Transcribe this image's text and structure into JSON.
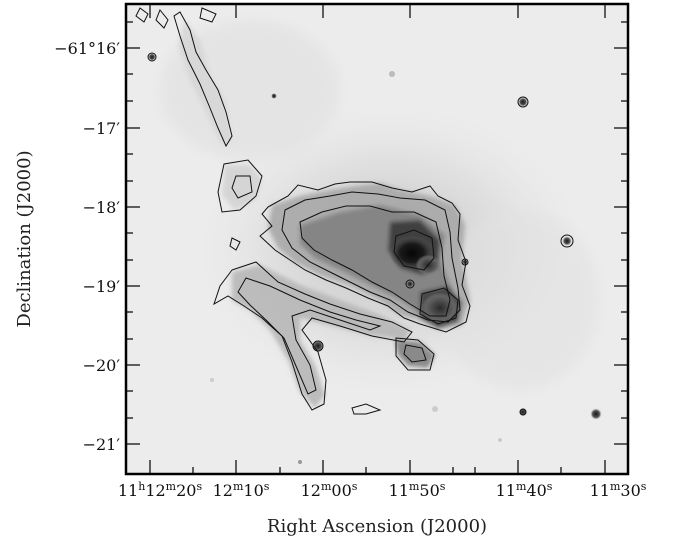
{
  "figure": {
    "axes": {
      "x": {
        "title": "Right Ascension (J2000)",
        "ticks": [
          {
            "h": "11",
            "m": "12",
            "s": "20"
          },
          {
            "h": "",
            "m": "12",
            "s": "10"
          },
          {
            "h": "",
            "m": "12",
            "s": "00"
          },
          {
            "h": "",
            "m": "11",
            "s": "50"
          },
          {
            "h": "",
            "m": "11",
            "s": "40"
          },
          {
            "h": "",
            "m": "11",
            "s": "30"
          }
        ]
      },
      "y": {
        "title": "Declination (J2000)",
        "ticks": [
          "−61°16′",
          "−17′",
          "−18′",
          "−19′",
          "−20′",
          "−21′"
        ]
      }
    },
    "image": {
      "type": "grayscale astronomical image with overlaid black contours",
      "colormap": [
        "#ffffff",
        "#e9e9e9",
        "#9a9a9a",
        "#505050",
        "#111111"
      ]
    }
  }
}
